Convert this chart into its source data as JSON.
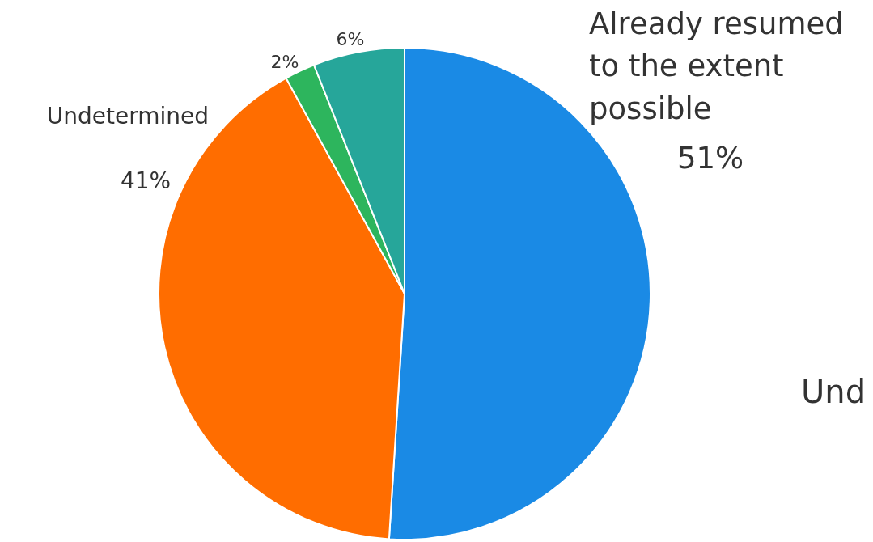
{
  "chart_data": {
    "type": "pie",
    "categories": [
      "Already resumed to the extent possible",
      "Undetermined",
      null,
      null
    ],
    "values": [
      51,
      41,
      2,
      6
    ],
    "colors": [
      "#1a8ae5",
      "#ff6d00",
      "#2db55d",
      "#26a69a"
    ],
    "value_labels": [
      "51%",
      "41%",
      "2%",
      "6%"
    ],
    "legend": false,
    "annotations": [
      "Und"
    ]
  }
}
